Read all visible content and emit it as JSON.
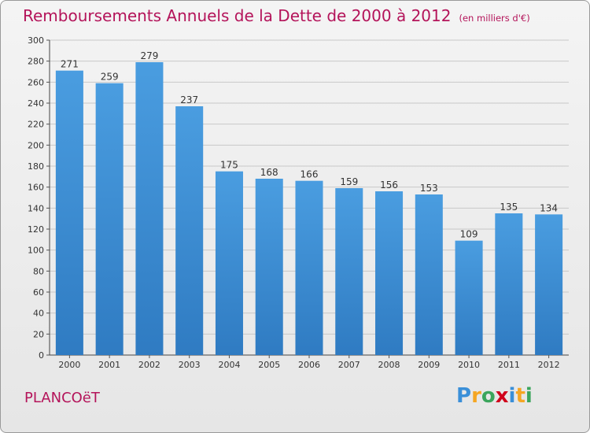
{
  "title": "Remboursements Annuels de la Dette de 2000 à 2012",
  "unit_note": "(en milliers d'€)",
  "location": "PLANCOëT",
  "brand": {
    "letters": [
      "P",
      "r",
      "o",
      "x",
      "i",
      "t",
      "i"
    ],
    "colors": [
      "#3a8fd8",
      "#f5a623",
      "#3ba55c",
      "#d0021b",
      "#3a8fd8",
      "#f5a623",
      "#3ba55c"
    ]
  },
  "chart_data": {
    "type": "bar",
    "title": "Remboursements Annuels de la Dette de 2000 à 2012",
    "xlabel": "",
    "ylabel": "",
    "categories": [
      "2000",
      "2001",
      "2002",
      "2003",
      "2004",
      "2005",
      "2006",
      "2007",
      "2008",
      "2009",
      "2010",
      "2011",
      "2012"
    ],
    "values": [
      271,
      259,
      279,
      237,
      175,
      168,
      166,
      159,
      156,
      153,
      109,
      135,
      134
    ],
    "ylim": [
      0,
      300
    ],
    "yticks": [
      0,
      20,
      40,
      60,
      80,
      100,
      120,
      140,
      160,
      180,
      200,
      220,
      240,
      260,
      280,
      300
    ],
    "grid": true,
    "bar_color": "#4a9de0",
    "bar_color_dark": "#2f7bc2"
  }
}
